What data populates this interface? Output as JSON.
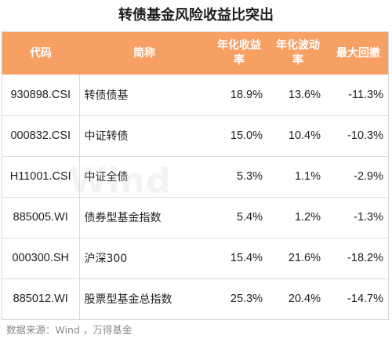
{
  "title": "转债基金风险收益比突出",
  "table": {
    "headers": [
      "代码",
      "简称",
      "年化收益率",
      "年化波动率",
      "最大回撤"
    ],
    "rows": [
      {
        "code": "930898.CSI",
        "name": "转债债基",
        "return": "18.9%",
        "volatility": "13.6%",
        "drawdown": "-11.3%"
      },
      {
        "code": "000832.CSI",
        "name": "中证转债",
        "return": "15.0%",
        "volatility": "10.4%",
        "drawdown": "-10.3%"
      },
      {
        "code": "H11001.CSI",
        "name": "中证全债",
        "return": "5.3%",
        "volatility": "1.1%",
        "drawdown": "-2.9%"
      },
      {
        "code": "885005.WI",
        "name": "债券型基金指数",
        "return": "5.4%",
        "volatility": "1.2%",
        "drawdown": "-1.3%"
      },
      {
        "code": "000300.SH",
        "name": "沪深300",
        "return": "15.4%",
        "volatility": "21.6%",
        "drawdown": "-18.2%"
      },
      {
        "code": "885012.WI",
        "name": "股票型基金总指数",
        "return": "25.3%",
        "volatility": "20.4%",
        "drawdown": "-14.7%"
      }
    ]
  },
  "watermark": "Wind",
  "source": "数据来源：Wind ，万得基金",
  "colors": {
    "header_bg": "#f6a064",
    "header_text": "#ffffff"
  }
}
